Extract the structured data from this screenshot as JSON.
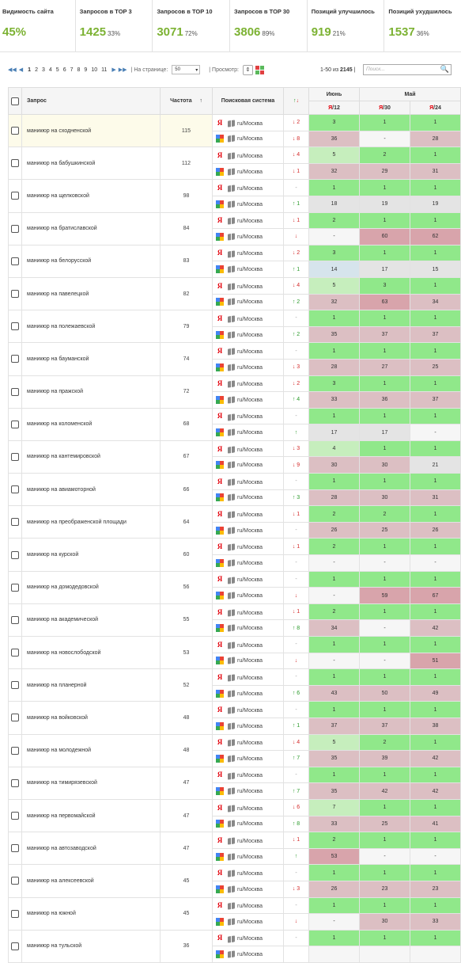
{
  "stats": [
    {
      "label": "Видимость сайта",
      "value": "45%",
      "pct": ""
    },
    {
      "label": "Запросов в TOP 3",
      "value": "1425",
      "pct": "33%"
    },
    {
      "label": "Запросов в TOP 10",
      "value": "3071",
      "pct": "72%"
    },
    {
      "label": "Запросов в TOP 30",
      "value": "3806",
      "pct": "89%"
    },
    {
      "label": "Позиций улучшилось",
      "value": "919",
      "pct": "21%"
    },
    {
      "label": "Позиций ухудшилось",
      "value": "1537",
      "pct": "36%"
    }
  ],
  "pager": {
    "pages": [
      "1",
      "2",
      "3",
      "4",
      "5",
      "6",
      "7",
      "8",
      "9",
      "10",
      "11"
    ],
    "per_page_label": "| На странице:",
    "per_page_value": "50",
    "view_label": "| Просмотр:",
    "range_text": "1-50 из",
    "range_total": "2145",
    "range_sep": "|",
    "search_placeholder": "Поиск..."
  },
  "table": {
    "headers": {
      "query": "Запрос",
      "frequency": "Частота",
      "sort_arrow": "↑",
      "engine": "Поисковая система",
      "change": "↑↓",
      "june": "Июнь",
      "may": "Май",
      "col1": "/12",
      "col2": "/30",
      "col3": "/24",
      "ya": "Я"
    },
    "region": "ru/Москва",
    "rows": [
      {
        "query": "маникюр на сходненской",
        "freq": "115",
        "hl": true,
        "y": {
          "ch": "↓ 2",
          "dir": "down",
          "v": [
            [
              "3",
              "g"
            ],
            [
              "1",
              "g"
            ],
            [
              "1",
              "g"
            ]
          ]
        },
        "g": {
          "ch": "↓ 8",
          "dir": "down",
          "v": [
            [
              "36",
              "r"
            ],
            [
              "-",
              "w"
            ],
            [
              "28",
              "r"
            ]
          ]
        }
      },
      {
        "query": "маникюр на бабушкинской",
        "freq": "112",
        "y": {
          "ch": "↓ 4",
          "dir": "down",
          "v": [
            [
              "5",
              "lg"
            ],
            [
              "2",
              "g"
            ],
            [
              "1",
              "g"
            ]
          ]
        },
        "g": {
          "ch": "↓ 1",
          "dir": "down",
          "v": [
            [
              "32",
              "r"
            ],
            [
              "29",
              "r"
            ],
            [
              "31",
              "r"
            ]
          ]
        }
      },
      {
        "query": "маникюр на щелковской",
        "freq": "98",
        "y": {
          "ch": "-",
          "dir": "nc",
          "v": [
            [
              "1",
              "g"
            ],
            [
              "1",
              "g"
            ],
            [
              "1",
              "g"
            ]
          ]
        },
        "g": {
          "ch": "↑ 1",
          "dir": "up",
          "v": [
            [
              "18",
              "n"
            ],
            [
              "19",
              "n"
            ],
            [
              "19",
              "n"
            ]
          ]
        }
      },
      {
        "query": "маникюр на братиславской",
        "freq": "84",
        "y": {
          "ch": "↓ 1",
          "dir": "down",
          "v": [
            [
              "2",
              "g"
            ],
            [
              "1",
              "g"
            ],
            [
              "1",
              "g"
            ]
          ]
        },
        "g": {
          "ch": "↓",
          "dir": "down",
          "v": [
            [
              "-",
              "w"
            ],
            [
              "60",
              "r2"
            ],
            [
              "62",
              "r2"
            ]
          ]
        }
      },
      {
        "query": "маникюр на белорусской",
        "freq": "83",
        "y": {
          "ch": "↓ 2",
          "dir": "down",
          "v": [
            [
              "3",
              "g"
            ],
            [
              "1",
              "g"
            ],
            [
              "1",
              "g"
            ]
          ]
        },
        "g": {
          "ch": "↑ 1",
          "dir": "up",
          "v": [
            [
              "14",
              "b"
            ],
            [
              "17",
              "n"
            ],
            [
              "15",
              "n"
            ]
          ]
        }
      },
      {
        "query": "маникюр на павелецкой",
        "freq": "82",
        "y": {
          "ch": "↓ 4",
          "dir": "down",
          "v": [
            [
              "5",
              "lg"
            ],
            [
              "3",
              "g"
            ],
            [
              "1",
              "g"
            ]
          ]
        },
        "g": {
          "ch": "↑ 2",
          "dir": "up",
          "v": [
            [
              "32",
              "r"
            ],
            [
              "63",
              "r2"
            ],
            [
              "34",
              "r"
            ]
          ]
        }
      },
      {
        "query": "маникюр на полежаевской",
        "freq": "79",
        "y": {
          "ch": "-",
          "dir": "nc",
          "v": [
            [
              "1",
              "g"
            ],
            [
              "1",
              "g"
            ],
            [
              "1",
              "g"
            ]
          ]
        },
        "g": {
          "ch": "↑ 2",
          "dir": "up",
          "v": [
            [
              "35",
              "r"
            ],
            [
              "37",
              "r"
            ],
            [
              "37",
              "r"
            ]
          ]
        }
      },
      {
        "query": "маникюр на бауманской",
        "freq": "74",
        "y": {
          "ch": "-",
          "dir": "nc",
          "v": [
            [
              "1",
              "g"
            ],
            [
              "1",
              "g"
            ],
            [
              "1",
              "g"
            ]
          ]
        },
        "g": {
          "ch": "↓ 3",
          "dir": "down",
          "v": [
            [
              "28",
              "r"
            ],
            [
              "27",
              "r"
            ],
            [
              "25",
              "r"
            ]
          ]
        }
      },
      {
        "query": "маникюр на пражской",
        "freq": "72",
        "y": {
          "ch": "↓ 2",
          "dir": "down",
          "v": [
            [
              "3",
              "g"
            ],
            [
              "1",
              "g"
            ],
            [
              "1",
              "g"
            ]
          ]
        },
        "g": {
          "ch": "↑ 4",
          "dir": "up",
          "v": [
            [
              "33",
              "r"
            ],
            [
              "36",
              "r"
            ],
            [
              "37",
              "r"
            ]
          ]
        }
      },
      {
        "query": "маникюр на коломенской",
        "freq": "68",
        "y": {
          "ch": "-",
          "dir": "nc",
          "v": [
            [
              "1",
              "g"
            ],
            [
              "1",
              "g"
            ],
            [
              "1",
              "g"
            ]
          ]
        },
        "g": {
          "ch": "↑",
          "dir": "up",
          "v": [
            [
              "17",
              "n"
            ],
            [
              "17",
              "n"
            ],
            [
              "-",
              "w"
            ]
          ]
        }
      },
      {
        "query": "маникюр на кантемировской",
        "freq": "67",
        "y": {
          "ch": "↓ 3",
          "dir": "down",
          "v": [
            [
              "4",
              "lg"
            ],
            [
              "1",
              "g"
            ],
            [
              "1",
              "g"
            ]
          ]
        },
        "g": {
          "ch": "↓ 9",
          "dir": "down",
          "v": [
            [
              "30",
              "r"
            ],
            [
              "30",
              "r"
            ],
            [
              "21",
              "n"
            ]
          ]
        }
      },
      {
        "query": "маникюр на авиамоторной",
        "freq": "66",
        "y": {
          "ch": "-",
          "dir": "nc",
          "v": [
            [
              "1",
              "g"
            ],
            [
              "1",
              "g"
            ],
            [
              "1",
              "g"
            ]
          ]
        },
        "g": {
          "ch": "↑ 3",
          "dir": "up",
          "v": [
            [
              "28",
              "r"
            ],
            [
              "30",
              "r"
            ],
            [
              "31",
              "r"
            ]
          ]
        }
      },
      {
        "query": "маникюр на преображенской площади",
        "freq": "64",
        "y": {
          "ch": "↓ 1",
          "dir": "down",
          "v": [
            [
              "2",
              "g"
            ],
            [
              "2",
              "g"
            ],
            [
              "1",
              "g"
            ]
          ]
        },
        "g": {
          "ch": "-",
          "dir": "nc",
          "v": [
            [
              "26",
              "r"
            ],
            [
              "25",
              "r"
            ],
            [
              "26",
              "r"
            ]
          ]
        }
      },
      {
        "query": "маникюр на курской",
        "freq": "60",
        "y": {
          "ch": "↓ 1",
          "dir": "down",
          "v": [
            [
              "2",
              "g"
            ],
            [
              "1",
              "g"
            ],
            [
              "1",
              "g"
            ]
          ]
        },
        "g": {
          "ch": "-",
          "dir": "nc",
          "v": [
            [
              "-",
              "w"
            ],
            [
              "-",
              "w"
            ],
            [
              "-",
              "w"
            ]
          ]
        }
      },
      {
        "query": "маникюр на домодедовской",
        "freq": "56",
        "y": {
          "ch": "-",
          "dir": "nc",
          "v": [
            [
              "1",
              "g"
            ],
            [
              "1",
              "g"
            ],
            [
              "1",
              "g"
            ]
          ]
        },
        "g": {
          "ch": "↓",
          "dir": "down",
          "v": [
            [
              "-",
              "w"
            ],
            [
              "59",
              "r2"
            ],
            [
              "67",
              "r2"
            ]
          ]
        }
      },
      {
        "query": "маникюр на академической",
        "freq": "55",
        "y": {
          "ch": "↓ 1",
          "dir": "down",
          "v": [
            [
              "2",
              "g"
            ],
            [
              "1",
              "g"
            ],
            [
              "1",
              "g"
            ]
          ]
        },
        "g": {
          "ch": "↑ 8",
          "dir": "up",
          "v": [
            [
              "34",
              "r"
            ],
            [
              "-",
              "w"
            ],
            [
              "42",
              "r"
            ]
          ]
        }
      },
      {
        "query": "маникюр на новослободской",
        "freq": "53",
        "y": {
          "ch": "-",
          "dir": "nc",
          "v": [
            [
              "1",
              "g"
            ],
            [
              "1",
              "g"
            ],
            [
              "1",
              "g"
            ]
          ]
        },
        "g": {
          "ch": "↓",
          "dir": "down",
          "v": [
            [
              "-",
              "w"
            ],
            [
              "-",
              "w"
            ],
            [
              "51",
              "r2"
            ]
          ]
        }
      },
      {
        "query": "маникюр на планерной",
        "freq": "52",
        "y": {
          "ch": "-",
          "dir": "nc",
          "v": [
            [
              "1",
              "g"
            ],
            [
              "1",
              "g"
            ],
            [
              "1",
              "g"
            ]
          ]
        },
        "g": {
          "ch": "↑ 6",
          "dir": "up",
          "v": [
            [
              "43",
              "r"
            ],
            [
              "50",
              "r"
            ],
            [
              "49",
              "r"
            ]
          ]
        }
      },
      {
        "query": "маникюр на войковской",
        "freq": "48",
        "y": {
          "ch": "-",
          "dir": "nc",
          "v": [
            [
              "1",
              "g"
            ],
            [
              "1",
              "g"
            ],
            [
              "1",
              "g"
            ]
          ]
        },
        "g": {
          "ch": "↑ 1",
          "dir": "up",
          "v": [
            [
              "37",
              "r"
            ],
            [
              "37",
              "r"
            ],
            [
              "38",
              "r"
            ]
          ]
        }
      },
      {
        "query": "маникюр на молодежной",
        "freq": "48",
        "y": {
          "ch": "↓ 4",
          "dir": "down",
          "v": [
            [
              "5",
              "lg"
            ],
            [
              "2",
              "g"
            ],
            [
              "1",
              "g"
            ]
          ]
        },
        "g": {
          "ch": "↑ 7",
          "dir": "up",
          "v": [
            [
              "35",
              "r"
            ],
            [
              "39",
              "r"
            ],
            [
              "42",
              "r"
            ]
          ]
        }
      },
      {
        "query": "маникюр на тимирязевской",
        "freq": "47",
        "y": {
          "ch": "-",
          "dir": "nc",
          "v": [
            [
              "1",
              "g"
            ],
            [
              "1",
              "g"
            ],
            [
              "1",
              "g"
            ]
          ]
        },
        "g": {
          "ch": "↑ 7",
          "dir": "up",
          "v": [
            [
              "35",
              "r"
            ],
            [
              "42",
              "r"
            ],
            [
              "42",
              "r"
            ]
          ]
        }
      },
      {
        "query": "маникюр на первомайской",
        "freq": "47",
        "y": {
          "ch": "↓ 6",
          "dir": "down",
          "v": [
            [
              "7",
              "lg"
            ],
            [
              "1",
              "g"
            ],
            [
              "1",
              "g"
            ]
          ]
        },
        "g": {
          "ch": "↑ 8",
          "dir": "up",
          "v": [
            [
              "33",
              "r"
            ],
            [
              "25",
              "r"
            ],
            [
              "41",
              "r"
            ]
          ]
        }
      },
      {
        "query": "маникюр на автозаводской",
        "freq": "47",
        "y": {
          "ch": "↓ 1",
          "dir": "down",
          "v": [
            [
              "2",
              "g"
            ],
            [
              "1",
              "g"
            ],
            [
              "1",
              "g"
            ]
          ]
        },
        "g": {
          "ch": "↑",
          "dir": "up",
          "v": [
            [
              "53",
              "r2"
            ],
            [
              "-",
              "w"
            ],
            [
              "-",
              "w"
            ]
          ]
        }
      },
      {
        "query": "маникюр на алексеевской",
        "freq": "45",
        "y": {
          "ch": "-",
          "dir": "nc",
          "v": [
            [
              "1",
              "g"
            ],
            [
              "1",
              "g"
            ],
            [
              "1",
              "g"
            ]
          ]
        },
        "g": {
          "ch": "↓ 3",
          "dir": "down",
          "v": [
            [
              "26",
              "r"
            ],
            [
              "23",
              "r"
            ],
            [
              "23",
              "r"
            ]
          ]
        }
      },
      {
        "query": "маникюр на южной",
        "freq": "45",
        "y": {
          "ch": "-",
          "dir": "nc",
          "v": [
            [
              "1",
              "g"
            ],
            [
              "1",
              "g"
            ],
            [
              "1",
              "g"
            ]
          ]
        },
        "g": {
          "ch": "↓",
          "dir": "down",
          "v": [
            [
              "-",
              "w"
            ],
            [
              "30",
              "r"
            ],
            [
              "33",
              "r"
            ]
          ]
        }
      },
      {
        "query": "маникюр на тульской",
        "freq": "36",
        "y": {
          "ch": "-",
          "dir": "nc",
          "v": [
            [
              "1",
              "g"
            ],
            [
              "1",
              "g"
            ],
            [
              "1",
              "g"
            ]
          ]
        },
        "g": {
          "ch": "",
          "dir": "nc",
          "v": [
            [
              "",
              "w"
            ],
            [
              "",
              "w"
            ],
            [
              "",
              "w"
            ]
          ]
        }
      }
    ]
  }
}
